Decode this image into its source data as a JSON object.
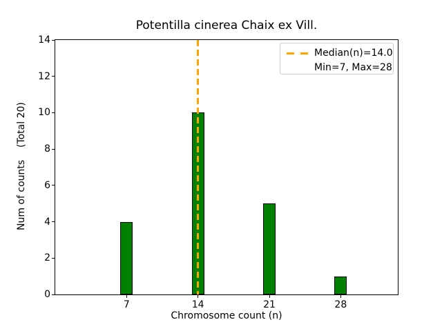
{
  "chart_data": {
    "type": "bar",
    "title": "Potentilla cinerea Chaix ex Vill.",
    "xlabel": "Chromosome count (n)",
    "ylabel": "Num of counts    (Total 20)",
    "categories": [
      7,
      14,
      21,
      28
    ],
    "values": [
      4,
      10,
      5,
      1
    ],
    "total_counts": 20,
    "xlim": [
      0,
      33.6
    ],
    "ylim": [
      0,
      14
    ],
    "xticks": [
      "7",
      "14",
      "21",
      "28"
    ],
    "yticks": [
      "0",
      "2",
      "4",
      "6",
      "8",
      "10",
      "12",
      "14"
    ],
    "grid": false,
    "bar_width_units": 1.2,
    "bar_fill_color": "#008000",
    "bar_edge_color": "#000000",
    "median_line": {
      "x": 14,
      "value_label": "14.0",
      "color": "#FFA500",
      "style": "dashed"
    },
    "legend": {
      "position": "upper right",
      "entries": [
        {
          "label": "Median(n)=14.0",
          "handle": "dashed-line",
          "color": "#FFA500"
        },
        {
          "label": "Min=7, Max=28",
          "handle": "none"
        }
      ]
    }
  }
}
